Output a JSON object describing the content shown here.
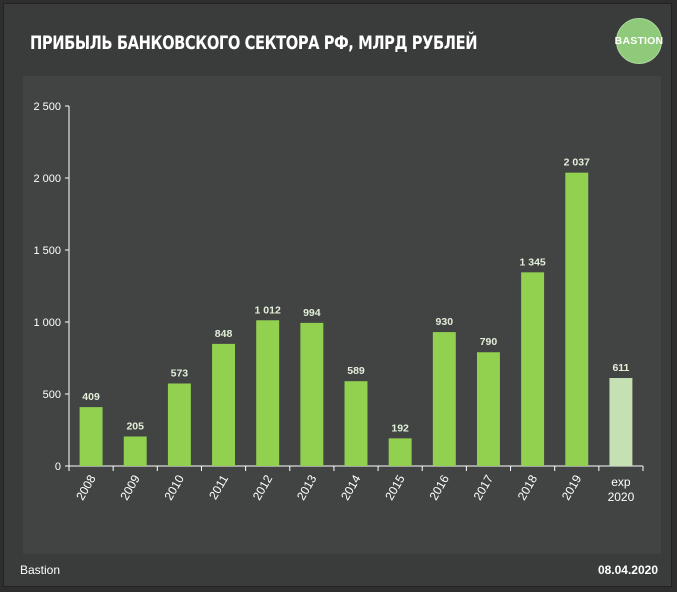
{
  "header": {
    "title": "ПРИБЫЛЬ БАНКОВСКОГО СЕКТОРА РФ, МЛРД РУБЛЕЙ",
    "logo_text": "BASTION"
  },
  "footer": {
    "source": "Bastion",
    "date": "08.04.2020"
  },
  "colors": {
    "bar": "#92d050",
    "bar_forecast": "#c5e0b3",
    "label": "#e2efd9",
    "axis_text": "#ffffff"
  },
  "chart_data": {
    "type": "bar",
    "title": "ПРИБЫЛЬ БАНКОВСКОГО СЕКТОРА РФ, МЛРД РУБЛЕЙ",
    "categories": [
      "2008",
      "2009",
      "2010",
      "2011",
      "2012",
      "2013",
      "2014",
      "2015",
      "2016",
      "2017",
      "2018",
      "2019",
      "exp 2020"
    ],
    "values": [
      409,
      205,
      573,
      848,
      1012,
      994,
      589,
      192,
      930,
      790,
      1345,
      2037,
      611
    ],
    "value_labels": [
      "409",
      "205",
      "573",
      "848",
      "1 012",
      "994",
      "589",
      "192",
      "930",
      "790",
      "1 345",
      "2 037",
      "611"
    ],
    "forecast_index": 12,
    "ylim": [
      0,
      2500
    ],
    "yticks": [
      0,
      500,
      1000,
      1500,
      2000,
      2500
    ],
    "ytick_labels": [
      "0",
      "500",
      "1 000",
      "1 500",
      "2 000",
      "2 500"
    ],
    "xlabel": "",
    "ylabel": ""
  }
}
